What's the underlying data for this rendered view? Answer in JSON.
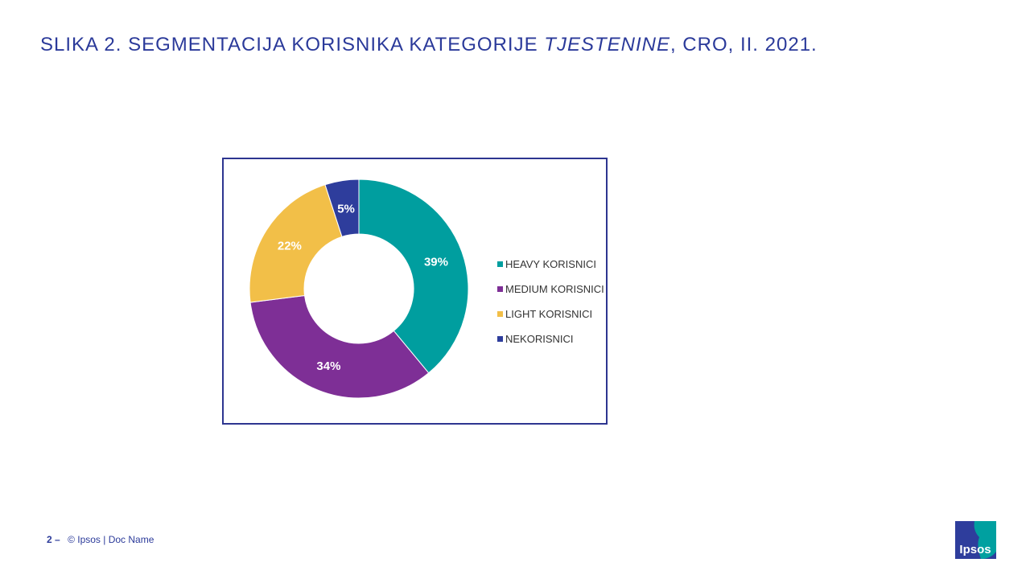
{
  "title": {
    "part1": "SLIKA 2. SEGMENTACIJA KORISNIKA KATEGORIJE ",
    "italic": "TJESTENINE",
    "part2": ", CRO, II. 2021."
  },
  "chart_data": {
    "type": "pie",
    "variant": "donut",
    "legend_position": "right",
    "categories": [
      "HEAVY KORISNICI",
      "MEDIUM KORISNICI",
      "LIGHT KORISNICI",
      "NEKORISNICI"
    ],
    "values": [
      39,
      34,
      22,
      5
    ],
    "labels": [
      "39%",
      "34%",
      "22%",
      "5%"
    ],
    "colors": [
      "#009e9f",
      "#7e2f96",
      "#f2bf48",
      "#2e3d9c"
    ]
  },
  "footer": {
    "page_number": "2",
    "separator": "–",
    "text": "© Ipsos | Doc Name"
  },
  "logo": {
    "text": "Ipsos",
    "colors": [
      "#2e3d9c",
      "#00a0a0"
    ]
  }
}
